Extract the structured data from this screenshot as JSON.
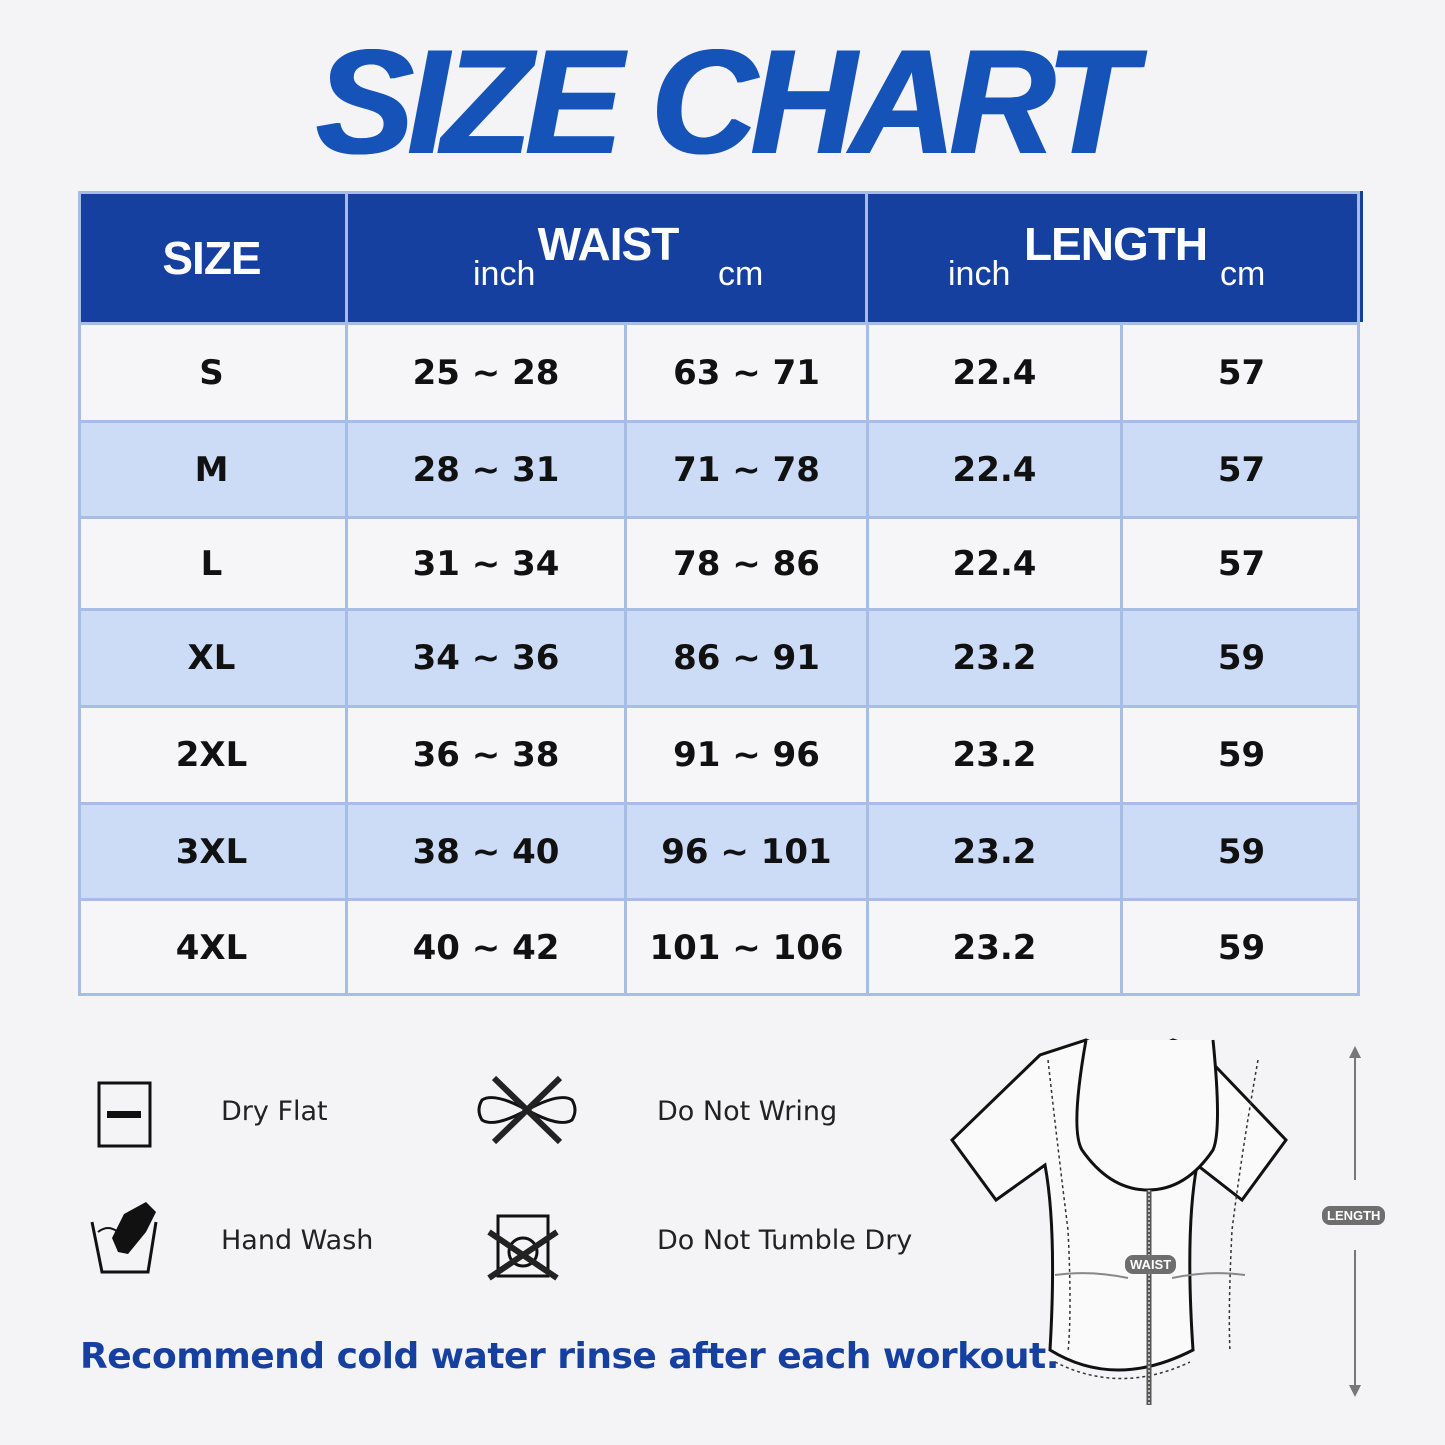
{
  "title": "SIZE CHART",
  "colors": {
    "header": "#1540a0",
    "alt_row": "#cddcf6",
    "border": "#a8bde6",
    "title": "#1553b8"
  },
  "table": {
    "headers": {
      "size": "SIZE",
      "waist": "WAIST",
      "length": "LENGTH",
      "waist_inch": "inch",
      "waist_cm": "cm",
      "length_inch": "inch",
      "length_cm": "cm"
    },
    "rows": [
      {
        "size": "S",
        "waist_inch": "25 ~ 28",
        "waist_cm": "63 ~ 71",
        "length_inch": "22.4",
        "length_cm": "57"
      },
      {
        "size": "M",
        "waist_inch": "28 ~ 31",
        "waist_cm": "71 ~ 78",
        "length_inch": "22.4",
        "length_cm": "57"
      },
      {
        "size": "L",
        "waist_inch": "31 ~ 34",
        "waist_cm": "78 ~ 86",
        "length_inch": "22.4",
        "length_cm": "57"
      },
      {
        "size": "XL",
        "waist_inch": "34 ~ 36",
        "waist_cm": "86 ~ 91",
        "length_inch": "23.2",
        "length_cm": "59"
      },
      {
        "size": "2XL",
        "waist_inch": "36 ~ 38",
        "waist_cm": "91 ~ 96",
        "length_inch": "23.2",
        "length_cm": "59"
      },
      {
        "size": "3XL",
        "waist_inch": "38 ~ 40",
        "waist_cm": "96 ~ 101",
        "length_inch": "23.2",
        "length_cm": "59"
      },
      {
        "size": "4XL",
        "waist_inch": "40 ~ 42",
        "waist_cm": "101 ~ 106",
        "length_inch": "23.2",
        "length_cm": "59"
      }
    ]
  },
  "care": [
    {
      "label": "Dry Flat",
      "icon": "dry-flat-icon"
    },
    {
      "label": "Do Not Wring",
      "icon": "do-not-wring-icon"
    },
    {
      "label": "Hand Wash",
      "icon": "hand-wash-icon"
    },
    {
      "label": "Do Not Tumble Dry",
      "icon": "do-not-tumble-dry-icon"
    }
  ],
  "note": "Recommend cold water rinse after each workout.",
  "diagram": {
    "waist_label": "WAIST",
    "length_label": "LENGTH"
  }
}
